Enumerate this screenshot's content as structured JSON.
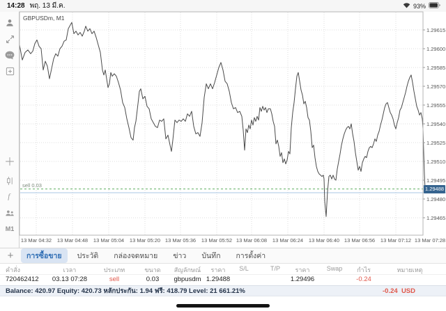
{
  "status_bar": {
    "time": "14:28",
    "date": "พฤ. 13 มี.ค.",
    "battery_percent": "93%"
  },
  "sidebar": {
    "icons": [
      "account-icon",
      "trade-arrows-icon",
      "chat-icon",
      "new-order-icon",
      "crosshair-icon",
      "candles-icon",
      "function-icon",
      "objects-icon"
    ],
    "timeframe_label": "M1"
  },
  "chart": {
    "symbol_label": "GBPUSDm, M1",
    "sell_line_label": "sell 0.03",
    "price_badge": "1.29488",
    "y_ticks": [
      "1.29615",
      "1.29600",
      "1.29585",
      "1.29570",
      "1.29555",
      "1.29540",
      "1.29525",
      "1.29510",
      "1.29495",
      "1.29480",
      "1.29465"
    ],
    "x_ticks": [
      "13 Mar 04:32",
      "13 Mar 04:48",
      "13 Mar 05:04",
      "13 Mar 05:20",
      "13 Mar 05:36",
      "13 Mar 05:52",
      "13 Mar 06:08",
      "13 Mar 06:24",
      "13 Mar 06:40",
      "13 Mar 06:56",
      "13 Mar 07:12",
      "13 Mar 07:28"
    ],
    "colors": {
      "line": "#4a4a4a",
      "sell_line": "#5fae61",
      "bid_line": "#a9c7e4",
      "badge_bg": "#36648f",
      "grid": "#dddddd",
      "accent_red": "#e0574a",
      "tab_blue": "#2e6db4"
    }
  },
  "chart_data": {
    "type": "line",
    "symbol": "GBPUSDm",
    "timeframe": "M1",
    "title": "GBPUSDm, M1",
    "x_tick_labels": [
      "13 Mar 04:32",
      "13 Mar 04:48",
      "13 Mar 05:04",
      "13 Mar 05:20",
      "13 Mar 05:36",
      "13 Mar 05:52",
      "13 Mar 06:08",
      "13 Mar 06:24",
      "13 Mar 06:40",
      "13 Mar 06:56",
      "13 Mar 07:12",
      "13 Mar 07:28"
    ],
    "y_tick_values": [
      1.29615,
      1.296,
      1.29585,
      1.2957,
      1.29555,
      1.2954,
      1.29525,
      1.2951,
      1.29495,
      1.2948,
      1.29465
    ],
    "ylim": [
      1.29451,
      1.29629
    ],
    "grid": true,
    "current_price": 1.29488,
    "bid_line_price": 1.29485,
    "position_line": {
      "side": "sell",
      "volume": 0.03,
      "open_price": 1.29488
    },
    "x_unit": "screen-px 28..610 maps 04:24..07:28",
    "points": [
      [
        28,
        1.29603
      ],
      [
        32,
        1.29591
      ],
      [
        36,
        1.29597
      ],
      [
        40,
        1.29599
      ],
      [
        44,
        1.29596
      ],
      [
        47,
        1.29598
      ],
      [
        50,
        1.29604
      ],
      [
        53,
        1.29607
      ],
      [
        56,
        1.29602
      ],
      [
        59,
        1.296
      ],
      [
        62,
        1.29583
      ],
      [
        65,
        1.2959
      ],
      [
        68,
        1.29586
      ],
      [
        71,
        1.29576
      ],
      [
        74,
        1.29584
      ],
      [
        77,
        1.29592
      ],
      [
        80,
        1.29596
      ],
      [
        83,
        1.29594
      ],
      [
        86,
        1.296
      ],
      [
        89,
        1.29602
      ],
      [
        92,
        1.29606
      ],
      [
        95,
        1.29607
      ],
      [
        98,
        1.29616
      ],
      [
        101,
        1.29619
      ],
      [
        103,
        1.29621
      ],
      [
        106,
        1.29612
      ],
      [
        109,
        1.29614
      ],
      [
        112,
        1.29611
      ],
      [
        115,
        1.29613
      ],
      [
        118,
        1.2961
      ],
      [
        121,
        1.29614
      ],
      [
        123,
        1.29618
      ],
      [
        126,
        1.29614
      ],
      [
        129,
        1.29616
      ],
      [
        132,
        1.29612
      ],
      [
        135,
        1.29614
      ],
      [
        138,
        1.29609
      ],
      [
        141,
        1.29603
      ],
      [
        144,
        1.29597
      ],
      [
        147,
        1.29583
      ],
      [
        149,
        1.29579
      ],
      [
        151,
        1.29583
      ],
      [
        153,
        1.29576
      ],
      [
        155,
        1.29569
      ],
      [
        157,
        1.29572
      ],
      [
        159,
        1.29581
      ],
      [
        161,
        1.29578
      ],
      [
        164,
        1.2958
      ],
      [
        167,
        1.29578
      ],
      [
        170,
        1.29573
      ],
      [
        173,
        1.29567
      ],
      [
        176,
        1.29557
      ],
      [
        179,
        1.29553
      ],
      [
        182,
        1.29544
      ],
      [
        185,
        1.29537
      ],
      [
        188,
        1.29529
      ],
      [
        191,
        1.29527
      ],
      [
        193,
        1.29537
      ],
      [
        195,
        1.29542
      ],
      [
        198,
        1.29556
      ],
      [
        200,
        1.29566
      ],
      [
        202,
        1.29568
      ],
      [
        205,
        1.2956
      ],
      [
        208,
        1.29562
      ],
      [
        211,
        1.29554
      ],
      [
        214,
        1.29552
      ],
      [
        217,
        1.29544
      ],
      [
        220,
        1.29541
      ],
      [
        223,
        1.29538
      ],
      [
        226,
        1.29537
      ],
      [
        229,
        1.29543
      ],
      [
        232,
        1.29542
      ],
      [
        235,
        1.29544
      ],
      [
        238,
        1.29528
      ],
      [
        241,
        1.29531
      ],
      [
        244,
        1.29523
      ],
      [
        246,
        1.29518
      ],
      [
        248,
        1.29527
      ],
      [
        251,
        1.29543
      ],
      [
        254,
        1.29541
      ],
      [
        257,
        1.29543
      ],
      [
        260,
        1.29542
      ],
      [
        263,
        1.29544
      ],
      [
        266,
        1.29542
      ],
      [
        269,
        1.29548
      ],
      [
        272,
        1.29546
      ],
      [
        275,
        1.2955
      ],
      [
        278,
        1.29538
      ],
      [
        281,
        1.29532
      ],
      [
        284,
        1.29533
      ],
      [
        287,
        1.2953
      ],
      [
        290,
        1.29541
      ],
      [
        293,
        1.29561
      ],
      [
        296,
        1.29572
      ],
      [
        299,
        1.29568
      ],
      [
        302,
        1.29572
      ],
      [
        305,
        1.29568
      ],
      [
        308,
        1.29573
      ],
      [
        311,
        1.29579
      ],
      [
        314,
        1.29585
      ],
      [
        317,
        1.29589
      ],
      [
        320,
        1.29583
      ],
      [
        323,
        1.29574
      ],
      [
        326,
        1.29572
      ],
      [
        329,
        1.29566
      ],
      [
        332,
        1.29557
      ],
      [
        335,
        1.29552
      ],
      [
        338,
        1.29553
      ],
      [
        341,
        1.29549
      ],
      [
        344,
        1.2955
      ],
      [
        347,
        1.29546
      ],
      [
        349,
        1.29535
      ],
      [
        351,
        1.29519
      ],
      [
        353,
        1.29536
      ],
      [
        355,
        1.29533
      ],
      [
        357,
        1.29539
      ],
      [
        359,
        1.29536
      ],
      [
        361,
        1.29543
      ],
      [
        363,
        1.29539
      ],
      [
        365,
        1.29545
      ],
      [
        367,
        1.29542
      ],
      [
        369,
        1.29546
      ],
      [
        371,
        1.29543
      ],
      [
        373,
        1.29553
      ],
      [
        375,
        1.2955
      ],
      [
        377,
        1.29554
      ],
      [
        379,
        1.29551
      ],
      [
        381,
        1.29553
      ],
      [
        383,
        1.29549
      ],
      [
        385,
        1.29552
      ],
      [
        388,
        1.29552
      ],
      [
        390,
        1.29548
      ],
      [
        392,
        1.29542
      ],
      [
        394,
        1.29538
      ],
      [
        396,
        1.29524
      ],
      [
        398,
        1.29527
      ],
      [
        400,
        1.29522
      ],
      [
        402,
        1.29514
      ],
      [
        404,
        1.29517
      ],
      [
        406,
        1.29509
      ],
      [
        408,
        1.29512
      ],
      [
        410,
        1.29508
      ],
      [
        412,
        1.29511
      ],
      [
        414,
        1.29518
      ],
      [
        416,
        1.29516
      ],
      [
        418,
        1.29537
      ],
      [
        420,
        1.29549
      ],
      [
        422,
        1.29557
      ],
      [
        424,
        1.29568
      ],
      [
        426,
        1.29578
      ],
      [
        428,
        1.29581
      ],
      [
        430,
        1.29574
      ],
      [
        432,
        1.29567
      ],
      [
        434,
        1.29563
      ],
      [
        436,
        1.29556
      ],
      [
        438,
        1.29558
      ],
      [
        440,
        1.29553
      ],
      [
        442,
        1.29545
      ],
      [
        444,
        1.29543
      ],
      [
        446,
        1.29534
      ],
      [
        448,
        1.29521
      ],
      [
        450,
        1.29523
      ],
      [
        452,
        1.29513
      ],
      [
        454,
        1.29506
      ],
      [
        456,
        1.29502
      ],
      [
        458,
        1.295
      ],
      [
        460,
        1.29499
      ],
      [
        462,
        1.29498
      ],
      [
        464,
        1.29499
      ],
      [
        465,
        1.29496
      ],
      [
        466,
        1.29478
      ],
      [
        468,
        1.29466
      ],
      [
        470,
        1.29486
      ],
      [
        472,
        1.29498
      ],
      [
        474,
        1.29499
      ],
      [
        476,
        1.29496
      ],
      [
        478,
        1.29499
      ],
      [
        480,
        1.29496
      ],
      [
        482,
        1.29495
      ],
      [
        484,
        1.29504
      ],
      [
        486,
        1.2951
      ],
      [
        488,
        1.29516
      ],
      [
        490,
        1.29523
      ],
      [
        492,
        1.29528
      ],
      [
        494,
        1.29532
      ],
      [
        496,
        1.29535
      ],
      [
        498,
        1.29537
      ],
      [
        500,
        1.29538
      ],
      [
        502,
        1.29536
      ],
      [
        504,
        1.2954
      ],
      [
        506,
        1.29532
      ],
      [
        508,
        1.29526
      ],
      [
        510,
        1.29517
      ],
      [
        512,
        1.2951
      ],
      [
        514,
        1.29503
      ],
      [
        516,
        1.29506
      ],
      [
        518,
        1.29502
      ],
      [
        520,
        1.29509
      ],
      [
        522,
        1.29512
      ],
      [
        524,
        1.29514
      ],
      [
        526,
        1.29513
      ],
      [
        528,
        1.29518
      ],
      [
        530,
        1.29521
      ],
      [
        532,
        1.29522
      ],
      [
        534,
        1.29521
      ],
      [
        536,
        1.29524
      ],
      [
        538,
        1.29528
      ],
      [
        540,
        1.29526
      ],
      [
        542,
        1.29531
      ],
      [
        544,
        1.29534
      ],
      [
        546,
        1.29539
      ],
      [
        548,
        1.29543
      ],
      [
        550,
        1.29548
      ],
      [
        552,
        1.29553
      ],
      [
        554,
        1.29556
      ],
      [
        556,
        1.29557
      ],
      [
        558,
        1.29553
      ],
      [
        560,
        1.29549
      ],
      [
        562,
        1.29547
      ],
      [
        564,
        1.29544
      ],
      [
        566,
        1.29539
      ],
      [
        568,
        1.29536
      ],
      [
        570,
        1.29541
      ],
      [
        572,
        1.29545
      ],
      [
        574,
        1.29551
      ],
      [
        576,
        1.29553
      ],
      [
        578,
        1.29557
      ],
      [
        580,
        1.29561
      ],
      [
        582,
        1.29565
      ],
      [
        584,
        1.2957
      ],
      [
        586,
        1.29574
      ],
      [
        588,
        1.29577
      ],
      [
        590,
        1.29579
      ],
      [
        592,
        1.29573
      ],
      [
        594,
        1.29566
      ],
      [
        596,
        1.2956
      ],
      [
        598,
        1.29554
      ],
      [
        600,
        1.29551
      ],
      [
        602,
        1.29547
      ],
      [
        604,
        1.29549
      ],
      [
        606,
        1.29544
      ],
      [
        607,
        1.29536
      ],
      [
        608,
        1.29517
      ],
      [
        609,
        1.295
      ],
      [
        610,
        1.29488
      ]
    ]
  },
  "tab_bar": {
    "add_button": "+",
    "tabs": [
      {
        "label": "การซื้อขาย",
        "selected": true
      },
      {
        "label": "ประวัติ",
        "selected": false
      },
      {
        "label": "กล่องจดหมาย",
        "selected": false
      },
      {
        "label": "ข่าว",
        "selected": false
      },
      {
        "label": "บันทึก",
        "selected": false
      },
      {
        "label": "การตั้งค่า",
        "selected": false
      }
    ]
  },
  "positions_table": {
    "headers": [
      "คำสั่ง",
      "เวลา",
      "ประเภท",
      "ขนาด",
      "สัญลักษณ์",
      "ราคา",
      "S/L",
      "T/P",
      "ราคา",
      "Swap",
      "กำไร",
      "หมายเหตุ"
    ],
    "rows": [
      [
        "720462412",
        "03.13 07:28",
        "sell",
        "0.03",
        "gbpusdm",
        "1.29488",
        "",
        "",
        "1.29496",
        "",
        "-0.24",
        ""
      ]
    ]
  },
  "account_bar": {
    "summary": "Balance: 420.97 Equity: 420.73 หลักประกัน: 1.94 ฟรี: 418.79 Level: 21 661.21%",
    "profit": "-0.24",
    "currency": "USD"
  }
}
